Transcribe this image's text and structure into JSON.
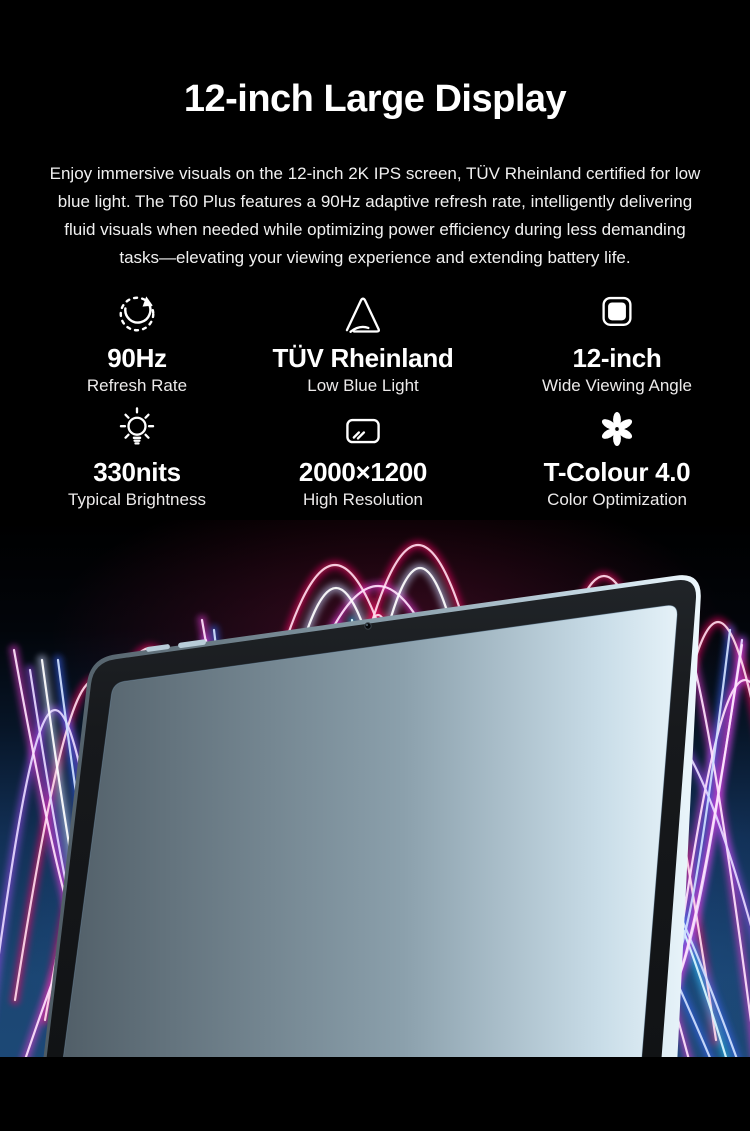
{
  "header": {
    "title": "12-inch Large Display",
    "lines": [
      "Enjoy immersive visuals on the 12-inch 2K IPS screen, TÜV Rheinland certified for low",
      "blue light. The T60 Plus features a 90Hz adaptive refresh rate, intelligently delivering",
      "fluid visuals when needed while optimizing power efficiency during less demanding",
      "tasks—elevating your viewing experience and extending battery life."
    ]
  },
  "features": {
    "items": [
      {
        "icon": "refresh-rate-dial-icon",
        "value": "90Hz",
        "label": "Refresh Rate"
      },
      {
        "icon": "tuv-rheinland-triangle-icon",
        "value": "TÜV Rheinland",
        "label": "Low Blue Light"
      },
      {
        "icon": "rounded-square-display-icon",
        "value": "12-inch",
        "label": "Wide Viewing Angle"
      },
      {
        "icon": "brightness-bulb-icon",
        "value": "330nits",
        "label": "Typical Brightness"
      },
      {
        "icon": "screen-resolution-icon",
        "value": "2000×1200",
        "label": "High Resolution"
      },
      {
        "icon": "flower-color-icon",
        "value": "T-Colour 4.0",
        "label": "Color Optimization"
      }
    ]
  },
  "hero": {
    "subject": "tablet-with-neon-light-waves"
  },
  "colors": {
    "page_background": "#000000",
    "accent_pink": "#f5146a",
    "accent_magenta": "#e23ad4",
    "accent_violet": "#9a4cf0",
    "accent_blue": "#3a63f2",
    "accent_cyan": "#27c0f5",
    "screen_blue": "#2565a8",
    "frame_silver": "#cfe0ea",
    "bezel_dark": "#16181b"
  }
}
